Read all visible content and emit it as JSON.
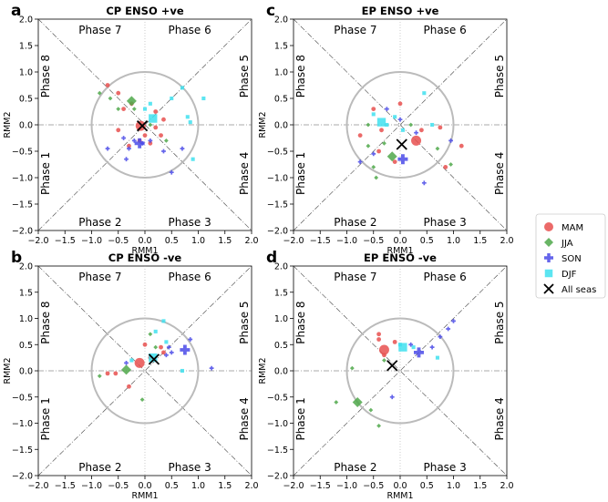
{
  "figure": {
    "legend": [
      {
        "label": "MAM",
        "marker": "circle",
        "color": "#e8504f"
      },
      {
        "label": "JJA",
        "marker": "diamond",
        "color": "#4fa84a"
      },
      {
        "label": "SON",
        "marker": "plus",
        "color": "#4a4ae8"
      },
      {
        "label": "DJF",
        "marker": "square",
        "color": "#40e0ee"
      },
      {
        "label": "All seas",
        "marker": "x",
        "color": "#000000"
      }
    ],
    "phases": {
      "p1": "Phase 1",
      "p2": "Phase 2",
      "p3": "Phase 3",
      "p4": "Phase 4",
      "p5": "Phase 5",
      "p6": "Phase 6",
      "p7": "Phase 7",
      "p8": "Phase 8"
    }
  },
  "chart_data": [
    {
      "type": "scatter",
      "panel_letter": "a",
      "title": "CP ENSO +ve",
      "xlabel": "RMM1",
      "ylabel": "RMM2",
      "xlim": [
        -2,
        2
      ],
      "ylim": [
        -2,
        2
      ],
      "ticks": [
        -2.0,
        -1.5,
        -1.0,
        -0.5,
        0.0,
        0.5,
        1.0,
        1.5,
        2.0
      ],
      "tick_labels": [
        "−2.0",
        "−1.5",
        "−1.0",
        "−0.5",
        "0.0",
        "0.5",
        "1.0",
        "1.5",
        "2.0"
      ],
      "unit_circle_radius": 1,
      "series": [
        {
          "name": "MAM",
          "small": [
            [
              -0.7,
              0.75
            ],
            [
              -0.5,
              0.6
            ],
            [
              -0.4,
              0.3
            ],
            [
              -0.25,
              0.4
            ],
            [
              0.2,
              0.25
            ],
            [
              0.35,
              0.1
            ],
            [
              -0.5,
              -0.1
            ],
            [
              -0.3,
              -0.4
            ],
            [
              -0.1,
              -0.3
            ],
            [
              0.0,
              -0.2
            ],
            [
              0.2,
              -0.05
            ],
            [
              0.3,
              -0.2
            ],
            [
              0.1,
              -0.35
            ]
          ],
          "mean": [
            -0.08,
            -0.02
          ]
        },
        {
          "name": "JJA",
          "small": [
            [
              -0.85,
              0.6
            ],
            [
              -0.65,
              0.5
            ],
            [
              -0.5,
              0.3
            ],
            [
              -0.2,
              0.3
            ],
            [
              0.4,
              -0.3
            ],
            [
              0.1,
              0.0
            ]
          ],
          "mean": [
            -0.25,
            0.45
          ]
        },
        {
          "name": "SON",
          "small": [
            [
              -0.7,
              -0.45
            ],
            [
              -0.4,
              -0.25
            ],
            [
              -0.3,
              -0.45
            ],
            [
              -0.2,
              -0.3
            ],
            [
              -0.05,
              -0.35
            ],
            [
              0.1,
              -0.3
            ],
            [
              -0.35,
              -0.65
            ],
            [
              0.7,
              -0.45
            ],
            [
              0.35,
              -0.5
            ],
            [
              0.5,
              -0.9
            ]
          ],
          "mean": [
            -0.1,
            -0.35
          ]
        },
        {
          "name": "DJF",
          "small": [
            [
              0.1,
              0.4
            ],
            [
              0.5,
              0.5
            ],
            [
              0.8,
              0.15
            ],
            [
              0.7,
              0.7
            ],
            [
              1.1,
              0.5
            ],
            [
              0.85,
              0.05
            ],
            [
              0.0,
              0.3
            ],
            [
              0.9,
              -0.65
            ]
          ],
          "mean": [
            0.15,
            0.12
          ]
        },
        {
          "name": "All seas",
          "mean": [
            -0.05,
            -0.02
          ]
        }
      ]
    },
    {
      "type": "scatter",
      "panel_letter": "c",
      "title": "EP ENSO +ve",
      "xlabel": "RMM1",
      "ylabel": "RMM2",
      "xlim": [
        -2,
        2
      ],
      "ylim": [
        -2,
        2
      ],
      "ticks": [
        -2.0,
        -1.5,
        -1.0,
        -0.5,
        0.0,
        0.5,
        1.0,
        1.5,
        2.0
      ],
      "tick_labels": [
        "−2.0",
        "−1.5",
        "−1.0",
        "−0.5",
        "0.0",
        "0.5",
        "1.0",
        "1.5",
        "2.0"
      ],
      "unit_circle_radius": 1,
      "series": [
        {
          "name": "MAM",
          "small": [
            [
              -0.5,
              0.3
            ],
            [
              0.0,
              0.4
            ],
            [
              0.4,
              -0.1
            ],
            [
              0.75,
              -0.05
            ],
            [
              1.15,
              -0.4
            ],
            [
              0.85,
              -0.8
            ],
            [
              -0.1,
              -0.7
            ],
            [
              -0.75,
              -0.2
            ],
            [
              -0.35,
              -0.1
            ],
            [
              -0.4,
              -0.5
            ]
          ],
          "mean": [
            0.3,
            -0.3
          ]
        },
        {
          "name": "JJA",
          "small": [
            [
              -0.6,
              -0.4
            ],
            [
              -0.5,
              -0.8
            ],
            [
              -0.45,
              -1.0
            ],
            [
              -0.3,
              -0.35
            ],
            [
              0.2,
              0.0
            ],
            [
              0.7,
              -0.45
            ],
            [
              0.95,
              -0.75
            ],
            [
              -0.6,
              0.0
            ]
          ],
          "mean": [
            -0.15,
            -0.6
          ]
        },
        {
          "name": "SON",
          "small": [
            [
              -0.25,
              0.3
            ],
            [
              0.0,
              0.1
            ],
            [
              0.3,
              -0.15
            ],
            [
              0.95,
              -0.3
            ],
            [
              -0.75,
              -0.7
            ],
            [
              -0.5,
              -0.55
            ],
            [
              0.45,
              -1.1
            ]
          ],
          "mean": [
            0.05,
            -0.65
          ]
        },
        {
          "name": "DJF",
          "small": [
            [
              -0.5,
              0.2
            ],
            [
              -0.1,
              0.15
            ],
            [
              0.45,
              0.6
            ],
            [
              0.05,
              -0.1
            ],
            [
              0.6,
              0.0
            ],
            [
              -0.25,
              0.0
            ]
          ],
          "mean": [
            -0.35,
            0.05
          ]
        },
        {
          "name": "All seas",
          "mean": [
            0.03,
            -0.37
          ]
        }
      ]
    },
    {
      "type": "scatter",
      "panel_letter": "b",
      "title": "CP ENSO -ve",
      "xlabel": "RMM1",
      "ylabel": "RMM2",
      "xlim": [
        -2,
        2
      ],
      "ylim": [
        -2,
        2
      ],
      "ticks": [
        -2.0,
        -1.5,
        -1.0,
        -0.5,
        0.0,
        0.5,
        1.0,
        1.5,
        2.0
      ],
      "tick_labels": [
        "−2.0",
        "−1.5",
        "−1.0",
        "−0.5",
        "0.0",
        "0.5",
        "1.0",
        "1.5",
        "2.0"
      ],
      "unit_circle_radius": 1,
      "series": [
        {
          "name": "MAM",
          "small": [
            [
              -0.55,
              -0.05
            ],
            [
              -0.7,
              -0.05
            ],
            [
              -0.3,
              -0.3
            ],
            [
              0.0,
              0.5
            ],
            [
              0.3,
              0.45
            ],
            [
              0.35,
              0.35
            ],
            [
              0.1,
              0.25
            ]
          ],
          "mean": [
            -0.1,
            0.15
          ]
        },
        {
          "name": "JJA",
          "small": [
            [
              -0.85,
              -0.1
            ],
            [
              -0.05,
              -0.55
            ],
            [
              0.1,
              0.7
            ],
            [
              0.2,
              0.45
            ]
          ],
          "mean": [
            -0.35,
            0.02
          ]
        },
        {
          "name": "SON",
          "small": [
            [
              0.4,
              0.3
            ],
            [
              0.45,
              0.45
            ],
            [
              0.85,
              0.6
            ],
            [
              1.25,
              0.05
            ],
            [
              -0.35,
              0.15
            ],
            [
              0.5,
              0.35
            ]
          ],
          "mean": [
            0.75,
            0.4
          ]
        },
        {
          "name": "DJF",
          "small": [
            [
              0.35,
              0.95
            ],
            [
              0.2,
              0.75
            ],
            [
              0.4,
              0.55
            ],
            [
              0.7,
              0.0
            ],
            [
              -0.25,
              0.2
            ]
          ],
          "mean": [
            0.15,
            0.25
          ]
        },
        {
          "name": "All seas",
          "mean": [
            0.17,
            0.22
          ]
        }
      ]
    },
    {
      "type": "scatter",
      "panel_letter": "d",
      "title": "EP ENSO -ve",
      "xlabel": "RMM1",
      "ylabel": "RMM2",
      "xlim": [
        -2,
        2
      ],
      "ylim": [
        -2,
        2
      ],
      "ticks": [
        -2.0,
        -1.5,
        -1.0,
        -0.5,
        0.0,
        0.5,
        1.0,
        1.5,
        2.0
      ],
      "tick_labels": [
        "−2.0",
        "−1.5",
        "−1.0",
        "−0.5",
        "0.0",
        "0.5",
        "1.0",
        "1.5",
        "2.0"
      ],
      "unit_circle_radius": 1,
      "series": [
        {
          "name": "MAM",
          "small": [
            [
              -0.4,
              0.7
            ],
            [
              -0.4,
              0.6
            ],
            [
              -0.1,
              0.55
            ],
            [
              -0.3,
              0.3
            ]
          ],
          "mean": [
            -0.3,
            0.4
          ]
        },
        {
          "name": "JJA",
          "small": [
            [
              -0.55,
              -0.75
            ],
            [
              -0.4,
              -1.05
            ],
            [
              -1.2,
              -0.6
            ],
            [
              -0.9,
              0.05
            ],
            [
              -0.3,
              0.2
            ]
          ],
          "mean": [
            -0.8,
            -0.6
          ]
        },
        {
          "name": "SON",
          "small": [
            [
              0.75,
              0.65
            ],
            [
              1.0,
              0.95
            ],
            [
              0.2,
              0.5
            ],
            [
              0.6,
              0.45
            ],
            [
              -0.15,
              -0.5
            ],
            [
              0.9,
              0.8
            ]
          ],
          "mean": [
            0.35,
            0.35
          ]
        },
        {
          "name": "DJF",
          "small": [
            [
              0.7,
              0.25
            ],
            [
              0.25,
              0.45
            ],
            [
              0.0,
              0.5
            ]
          ],
          "mean": [
            0.05,
            0.45
          ]
        },
        {
          "name": "All seas",
          "mean": [
            -0.15,
            0.1
          ]
        }
      ]
    }
  ]
}
